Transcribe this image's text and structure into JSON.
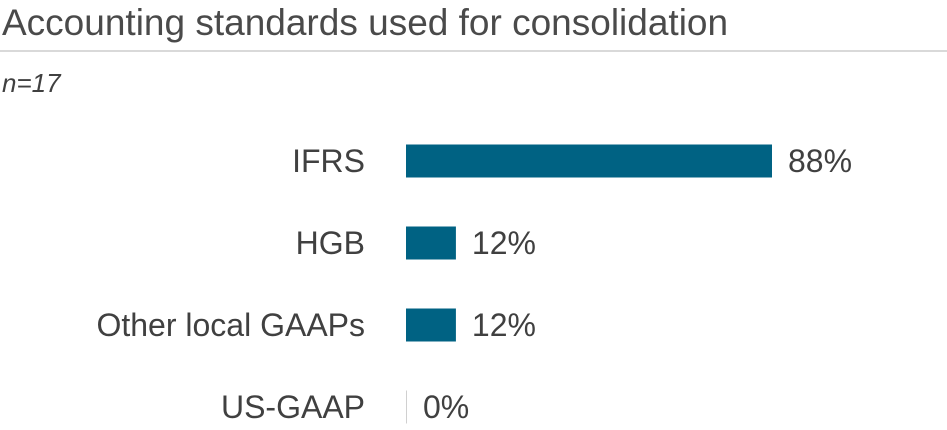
{
  "header": {
    "title": "Accounting standards used for consolidation",
    "subtitle": "n=17"
  },
  "colors": {
    "bar": "#006283",
    "text": "#404040",
    "zero_bar": "#d0d0d0"
  },
  "chart_data": {
    "type": "bar",
    "orientation": "horizontal",
    "title": "Accounting standards used for consolidation",
    "subtitle": "n=17",
    "categories": [
      "IFRS",
      "HGB",
      "Other local GAAPs",
      "US-GAAP"
    ],
    "values": [
      88,
      12,
      12,
      0
    ],
    "value_labels": [
      "88%",
      "12%",
      "12%",
      "0%"
    ],
    "unit": "%",
    "xlim": [
      0,
      100
    ],
    "grid": false,
    "legend": "none"
  }
}
